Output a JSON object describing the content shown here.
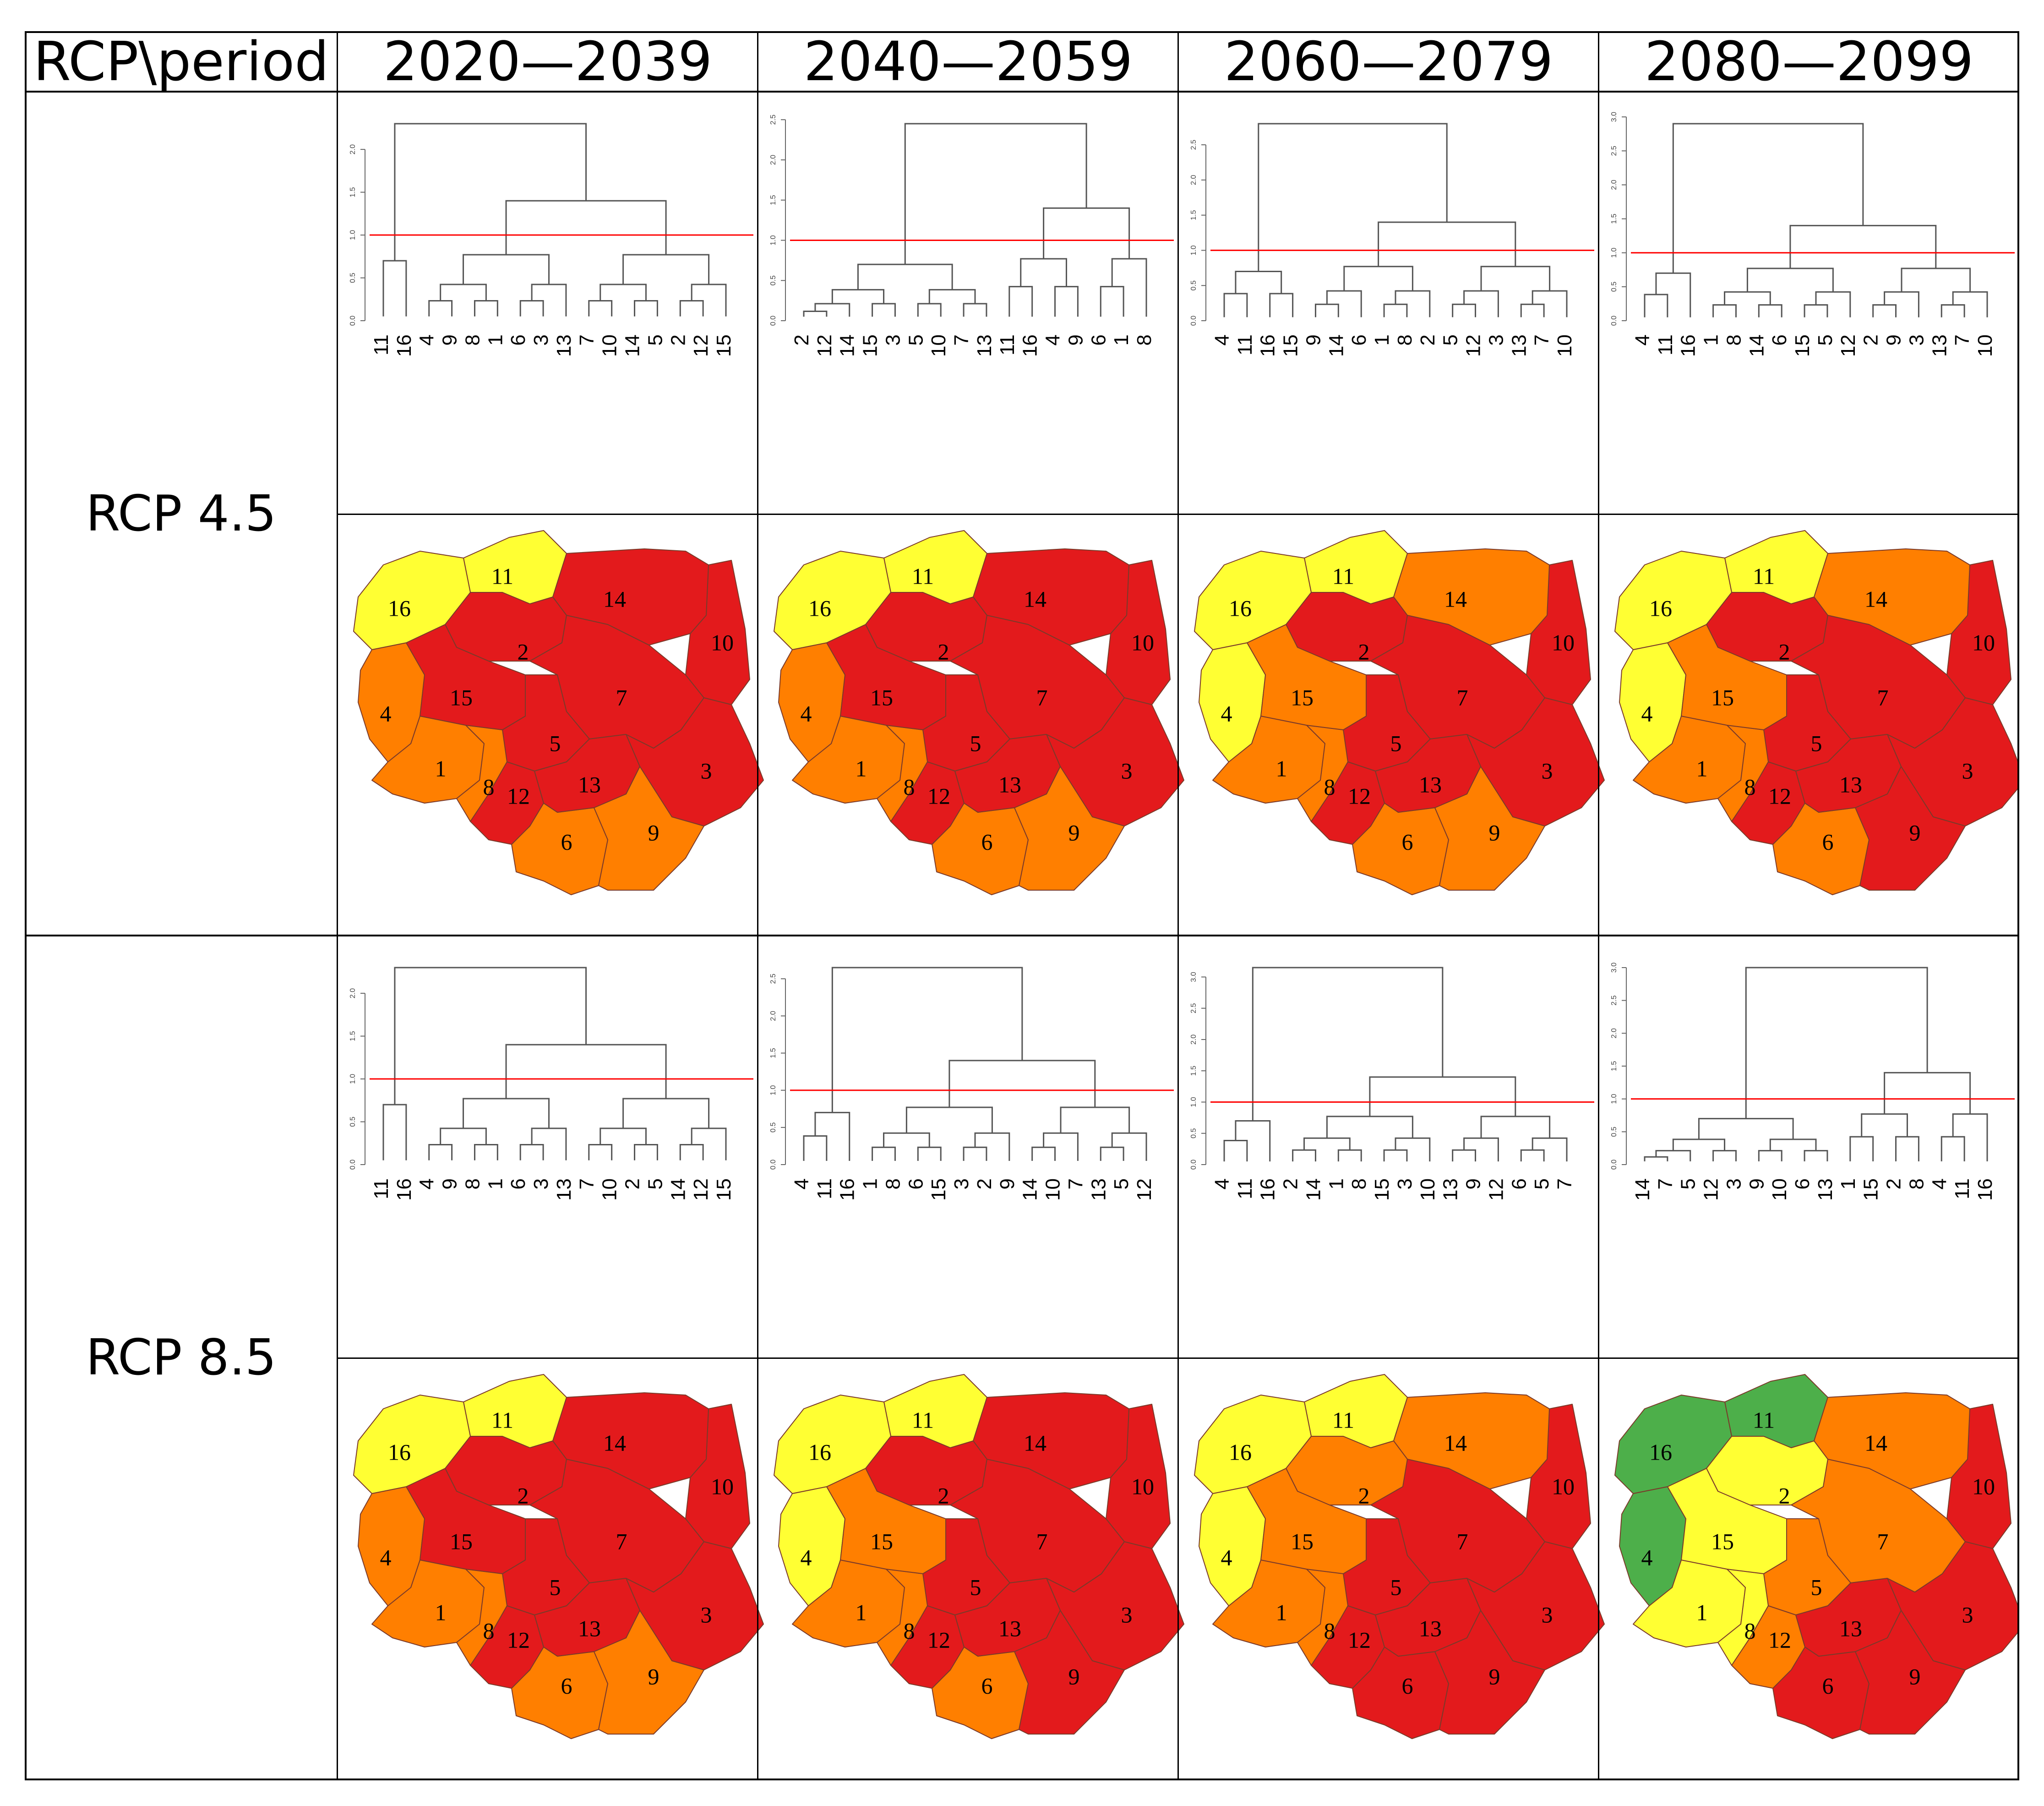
{
  "table": {
    "corner_label": "RCP\\period",
    "periods": [
      "2020—2039",
      "2040—2059",
      "2060—2079",
      "2080—2099"
    ],
    "scenarios": [
      {
        "label": "RCP 4.5",
        "panels": [
          {
            "yticks": [
              "0.0",
              "0.5",
              "1.0",
              "1.5",
              "2.0"
            ],
            "ymax": 2.3,
            "cut": 1.0,
            "top_split": 0.05,
            "leaves": [
              "11",
              "16",
              "4",
              "9",
              "8",
              "1",
              "6",
              "3",
              "13",
              "7",
              "10",
              "14",
              "5",
              "2",
              "12",
              "15"
            ],
            "regions": {
              "1": "orange",
              "2": "red",
              "3": "red",
              "4": "orange",
              "5": "red",
              "6": "orange",
              "7": "red",
              "8": "orange",
              "9": "orange",
              "10": "red",
              "11": "yellow",
              "12": "red",
              "13": "red",
              "14": "red",
              "15": "red",
              "16": "yellow"
            }
          },
          {
            "yticks": [
              "0.0",
              "0.5",
              "1.0",
              "1.5",
              "2.0",
              "2.5"
            ],
            "ymax": 2.45,
            "cut": 1.0,
            "top_split": 0.5,
            "leaves": [
              "2",
              "12",
              "14",
              "15",
              "3",
              "5",
              "10",
              "7",
              "13",
              "11",
              "16",
              "4",
              "9",
              "6",
              "1",
              "8"
            ],
            "regions": {
              "1": "orange",
              "2": "red",
              "3": "red",
              "4": "orange",
              "5": "red",
              "6": "orange",
              "7": "red",
              "8": "orange",
              "9": "orange",
              "10": "red",
              "11": "yellow",
              "12": "red",
              "13": "red",
              "14": "red",
              "15": "red",
              "16": "yellow"
            }
          },
          {
            "yticks": [
              "0.0",
              "0.5",
              "1.0",
              "1.5",
              "2.0",
              "2.5"
            ],
            "ymax": 2.8,
            "cut": 1.0,
            "top_split": 0.2,
            "leaves": [
              "4",
              "11",
              "16",
              "15",
              "9",
              "14",
              "6",
              "1",
              "8",
              "2",
              "5",
              "12",
              "3",
              "13",
              "7",
              "10"
            ],
            "regions": {
              "1": "orange",
              "2": "red",
              "3": "red",
              "4": "yellow",
              "5": "red",
              "6": "orange",
              "7": "red",
              "8": "orange",
              "9": "orange",
              "10": "red",
              "11": "yellow",
              "12": "red",
              "13": "red",
              "14": "orange",
              "15": "orange",
              "16": "yellow"
            }
          },
          {
            "yticks": [
              "0.0",
              "0.5",
              "1.0",
              "1.5",
              "2.0",
              "2.5",
              "3.0"
            ],
            "ymax": 2.9,
            "cut": 1.0,
            "top_split": 0.1,
            "leaves": [
              "4",
              "11",
              "16",
              "1",
              "8",
              "14",
              "6",
              "15",
              "5",
              "12",
              "2",
              "9",
              "3",
              "13",
              "7",
              "10"
            ],
            "regions": {
              "1": "orange",
              "2": "red",
              "3": "red",
              "4": "yellow",
              "5": "red",
              "6": "orange",
              "7": "red",
              "8": "orange",
              "9": "red",
              "10": "red",
              "11": "yellow",
              "12": "red",
              "13": "red",
              "14": "orange",
              "15": "orange",
              "16": "yellow"
            }
          }
        ]
      },
      {
        "label": "RCP 8.5",
        "panels": [
          {
            "yticks": [
              "0.0",
              "0.5",
              "1.0",
              "1.5",
              "2.0"
            ],
            "ymax": 2.3,
            "cut": 1.0,
            "top_split": 0.05,
            "leaves": [
              "11",
              "16",
              "4",
              "9",
              "8",
              "1",
              "6",
              "3",
              "13",
              "7",
              "10",
              "2",
              "5",
              "14",
              "12",
              "15"
            ],
            "regions": {
              "1": "orange",
              "2": "red",
              "3": "red",
              "4": "orange",
              "5": "red",
              "6": "orange",
              "7": "red",
              "8": "orange",
              "9": "orange",
              "10": "red",
              "11": "yellow",
              "12": "red",
              "13": "red",
              "14": "red",
              "15": "red",
              "16": "yellow"
            }
          },
          {
            "yticks": [
              "0.0",
              "0.5",
              "1.0",
              "1.5",
              "2.0",
              "2.5"
            ],
            "ymax": 2.65,
            "cut": 1.0,
            "top_split": 0.1,
            "leaves": [
              "4",
              "11",
              "16",
              "1",
              "8",
              "6",
              "15",
              "3",
              "2",
              "9",
              "14",
              "10",
              "7",
              "13",
              "5",
              "12"
            ],
            "regions": {
              "1": "orange",
              "2": "red",
              "3": "red",
              "4": "yellow",
              "5": "red",
              "6": "orange",
              "7": "red",
              "8": "orange",
              "9": "red",
              "10": "red",
              "11": "yellow",
              "12": "red",
              "13": "red",
              "14": "red",
              "15": "orange",
              "16": "yellow"
            }
          },
          {
            "yticks": [
              "0.0",
              "0.5",
              "1.0",
              "1.5",
              "2.0",
              "2.5",
              "3.0"
            ],
            "ymax": 3.15,
            "cut": 1.0,
            "top_split": 0.1,
            "leaves": [
              "4",
              "11",
              "16",
              "2",
              "14",
              "1",
              "8",
              "15",
              "3",
              "10",
              "13",
              "9",
              "12",
              "6",
              "5",
              "7"
            ],
            "regions": {
              "1": "orange",
              "2": "orange",
              "3": "red",
              "4": "yellow",
              "5": "red",
              "6": "red",
              "7": "red",
              "8": "orange",
              "9": "red",
              "10": "red",
              "11": "yellow",
              "12": "red",
              "13": "red",
              "14": "orange",
              "15": "orange",
              "16": "yellow"
            }
          },
          {
            "yticks": [
              "0.0",
              "0.5",
              "1.0",
              "1.5",
              "2.0",
              "2.5",
              "3.0"
            ],
            "ymax": 3.0,
            "cut": 1.0,
            "top_split": 0.5,
            "leaves": [
              "14",
              "7",
              "5",
              "12",
              "3",
              "9",
              "10",
              "6",
              "13",
              "1",
              "15",
              "2",
              "8",
              "4",
              "11",
              "16"
            ],
            "regions": {
              "1": "yellow",
              "2": "yellow",
              "3": "red",
              "4": "green",
              "5": "orange",
              "6": "red",
              "7": "orange",
              "8": "yellow",
              "9": "red",
              "10": "red",
              "11": "green",
              "12": "orange",
              "13": "red",
              "14": "orange",
              "15": "yellow",
              "16": "green"
            }
          }
        ]
      }
    ]
  },
  "colors": {
    "red": "#e31a1c",
    "orange": "#ff7f00",
    "yellow": "#ffff33",
    "green": "#4daf4a",
    "cut_line": "#ff0000",
    "tree": "#555555",
    "border": "#000000"
  }
}
